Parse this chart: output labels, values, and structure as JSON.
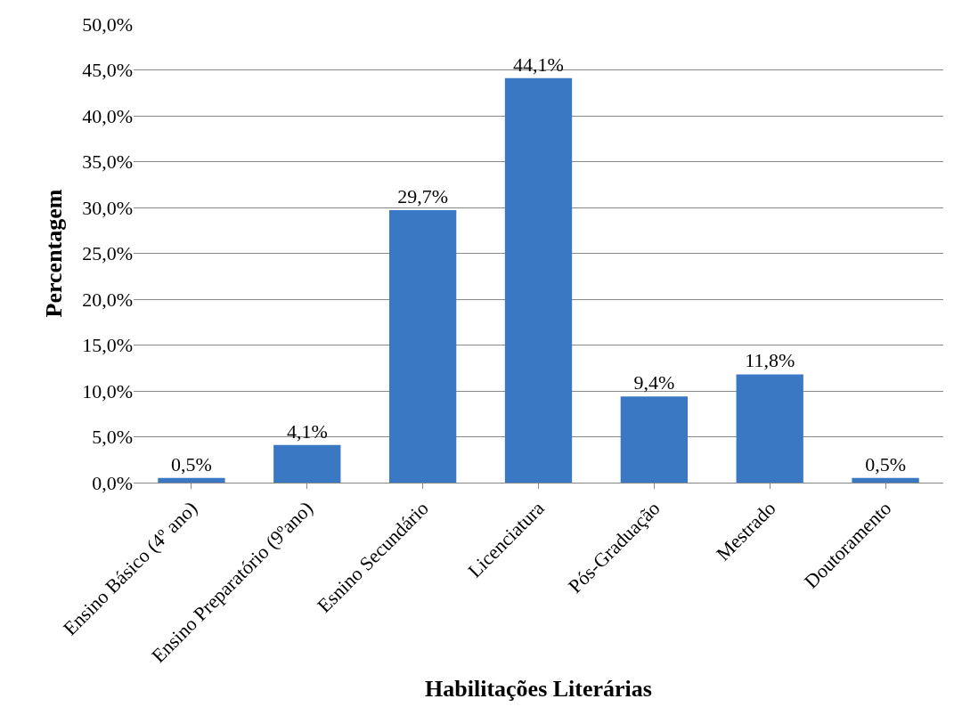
{
  "chart_data": {
    "type": "bar",
    "xlabel": "Habilitações Literárias",
    "ylabel": "Percentagem",
    "categories": [
      "Ensino Básico (4º ano)",
      "Ensino Preparatório (9ºano)",
      "Esnino Secundário",
      "Licenciatura",
      "Pós-Graduação",
      "Mestrado",
      "Doutoramento"
    ],
    "values": [
      0.5,
      4.1,
      29.7,
      44.1,
      9.4,
      11.8,
      0.5
    ],
    "value_labels": [
      "0,5%",
      "4,1%",
      "29,7%",
      "44,1%",
      "9,4%",
      "11,8%",
      "0,5%"
    ],
    "color": "#3b78c4",
    "ylim": [
      0,
      50
    ],
    "yticks": [
      {
        "value": 0,
        "label": "0,0%"
      },
      {
        "value": 5,
        "label": "5,0%"
      },
      {
        "value": 10,
        "label": "10,0%"
      },
      {
        "value": 15,
        "label": "15,0%"
      },
      {
        "value": 20,
        "label": "20,0%"
      },
      {
        "value": 25,
        "label": "25,0%"
      },
      {
        "value": 30,
        "label": "30,0%"
      },
      {
        "value": 35,
        "label": "35,0%"
      },
      {
        "value": 40,
        "label": "40,0%"
      },
      {
        "value": 45,
        "label": "45,0%"
      },
      {
        "value": 50,
        "label": "50,0%"
      }
    ],
    "grid": "y",
    "legend": false
  }
}
